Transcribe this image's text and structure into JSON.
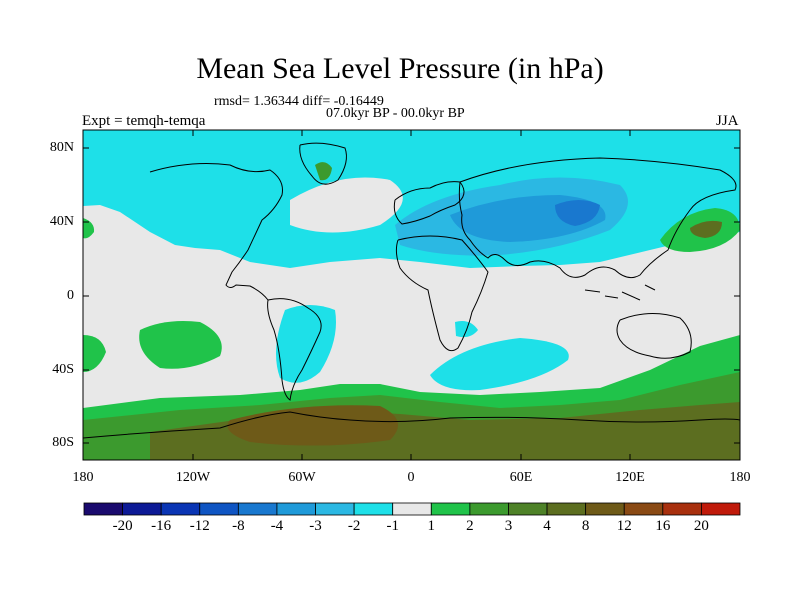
{
  "title": "Mean Sea Level Pressure (in hPa)",
  "stats": "rmsd= 1.36344 diff= -0.16449",
  "period": "07.0kyr BP - 00.0kyr BP",
  "experiment": "Expt = temqh-temqa",
  "season": "JJA",
  "lat_labels": [
    "80N",
    "40N",
    "0",
    "40S",
    "80S"
  ],
  "lon_labels": [
    "180",
    "120W",
    "60W",
    "0",
    "60E",
    "120E",
    "180"
  ],
  "colorbar": {
    "colors": [
      "#1a0a6e",
      "#0d1a96",
      "#0a35b4",
      "#0f55c3",
      "#1978cf",
      "#1f9ad9",
      "#2bb8e3",
      "#1ee0e8",
      "#e8e8e8",
      "#20c34a",
      "#3c9a2e",
      "#4e8228",
      "#5c6e20",
      "#6e5a18",
      "#8a4a14",
      "#a8300e",
      "#c01a0a"
    ],
    "labels": [
      "-20",
      "-16",
      "-12",
      "-8",
      "-4",
      "-3",
      "-2",
      "-1",
      "1",
      "2",
      "3",
      "4",
      "8",
      "12",
      "16",
      "20"
    ]
  },
  "field_colors": {
    "neutral": "#e8e8e8",
    "neg1": "#1ee0e8",
    "neg2": "#2bb8e3",
    "neg3": "#1f9ad9",
    "neg4": "#1978cf",
    "pos1": "#20c34a",
    "pos2": "#3c9a2e",
    "pos3": "#5c6e20",
    "pos4": "#6e5a18"
  }
}
